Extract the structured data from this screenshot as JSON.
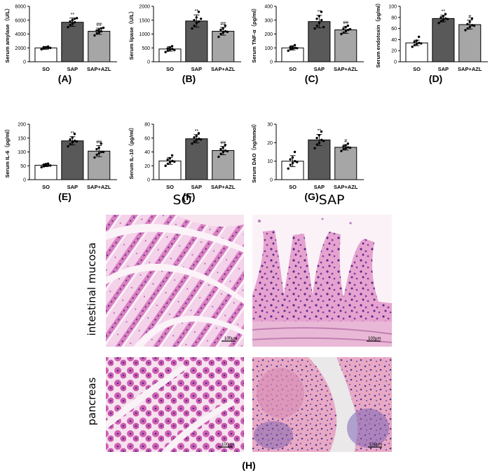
{
  "chart_data": [
    {
      "type": "bar",
      "panel_label": "(A)",
      "ylabel": "Serum amylase（U/L）",
      "categories": [
        "SO",
        "SAP",
        "SAP+AZL"
      ],
      "ylim": [
        0,
        8000
      ],
      "yticks": [
        "0",
        "2000",
        "4000",
        "6000",
        "8000"
      ],
      "values": [
        2000,
        5700,
        4400
      ],
      "errors": [
        200,
        600,
        450
      ],
      "significance": [
        "",
        "**",
        "##"
      ],
      "points": [
        [
          1800,
          1900,
          2000,
          2000,
          2100,
          2100,
          2200,
          2000
        ],
        [
          5000,
          5300,
          5500,
          5700,
          5800,
          6000,
          6200,
          6300
        ],
        [
          3800,
          4100,
          4200,
          4400,
          4500,
          4600,
          4800,
          4900
        ]
      ]
    },
    {
      "type": "bar",
      "panel_label": "(B)",
      "ylabel": "Serum lipase（U/L）",
      "categories": [
        "SO",
        "SAP",
        "SAP+AZL"
      ],
      "ylim": [
        0,
        2000
      ],
      "yticks": [
        "0",
        "500",
        "1000",
        "1500",
        "2000"
      ],
      "values": [
        460,
        1470,
        1100
      ],
      "errors": [
        80,
        220,
        140
      ],
      "significance": [
        "",
        "**",
        "##"
      ],
      "points": [
        [
          350,
          400,
          440,
          460,
          480,
          520,
          560,
          420
        ],
        [
          1200,
          1300,
          1400,
          1450,
          1500,
          1600,
          1800,
          1550
        ],
        [
          900,
          1000,
          1050,
          1100,
          1150,
          1200,
          1300,
          1080
        ]
      ]
    },
    {
      "type": "bar",
      "panel_label": "(C)",
      "ylabel": "Serum TNF-α（pg/ml）",
      "categories": [
        "SO",
        "SAP",
        "SAP+AZL"
      ],
      "ylim": [
        0,
        400
      ],
      "yticks": [
        "0",
        "100",
        "200",
        "300",
        "400"
      ],
      "values": [
        100,
        290,
        230
      ],
      "errors": [
        15,
        45,
        25
      ],
      "significance": [
        "",
        "**",
        "##"
      ],
      "points": [
        [
          80,
          90,
          95,
          100,
          105,
          110,
          120,
          98
        ],
        [
          240,
          260,
          280,
          300,
          310,
          330,
          360,
          250
        ],
        [
          200,
          210,
          220,
          230,
          240,
          250,
          260,
          235
        ]
      ]
    },
    {
      "type": "bar",
      "panel_label": "(D)",
      "ylabel": "Serum endotoxin（pg/ml）",
      "categories": [
        "SO",
        "SAP",
        "SAP+AZL"
      ],
      "ylim": [
        0,
        100
      ],
      "yticks": [
        "0",
        "20",
        "40",
        "60",
        "80",
        "100"
      ],
      "values": [
        34,
        78,
        67
      ],
      "errors": [
        5,
        6,
        8
      ],
      "significance": [
        "",
        "**",
        "#"
      ],
      "points": [
        [
          27,
          30,
          32,
          34,
          36,
          38,
          45,
          33
        ],
        [
          70,
          73,
          75,
          78,
          80,
          82,
          86,
          77
        ],
        [
          57,
          60,
          63,
          66,
          68,
          72,
          78,
          65
        ]
      ]
    },
    {
      "type": "bar",
      "panel_label": "(E)",
      "ylabel": "Serum IL-6（pg/ml）",
      "categories": [
        "SO",
        "SAP",
        "SAP+AZL"
      ],
      "ylim": [
        0,
        200
      ],
      "yticks": [
        "0",
        "50",
        "100",
        "150",
        "200"
      ],
      "values": [
        52,
        140,
        103
      ],
      "errors": [
        5,
        15,
        20
      ],
      "significance": [
        "",
        "**",
        "##"
      ],
      "points": [
        [
          45,
          48,
          50,
          52,
          54,
          56,
          58,
          51
        ],
        [
          120,
          128,
          135,
          140,
          145,
          152,
          165,
          138
        ],
        [
          80,
          90,
          95,
          100,
          110,
          115,
          130,
          100
        ]
      ]
    },
    {
      "type": "bar",
      "panel_label": "(F)",
      "ylabel": "Serum IL-10（pg/ml）",
      "categories": [
        "SO",
        "SAP",
        "SAP+AZL"
      ],
      "ylim": [
        0,
        80
      ],
      "yticks": [
        "0",
        "20",
        "40",
        "60",
        "80"
      ],
      "values": [
        27,
        59,
        42
      ],
      "errors": [
        5,
        6,
        6
      ],
      "significance": [
        "",
        "**",
        "##"
      ],
      "points": [
        [
          20,
          23,
          25,
          27,
          29,
          31,
          35,
          26
        ],
        [
          52,
          55,
          57,
          59,
          61,
          63,
          67,
          58
        ],
        [
          33,
          37,
          40,
          42,
          44,
          46,
          50,
          41
        ]
      ]
    },
    {
      "type": "bar",
      "panel_label": "(G)",
      "ylabel": "Serum DAO（ng/mmol）",
      "categories": [
        "SO",
        "SAP",
        "SAP+AZL"
      ],
      "ylim": [
        0,
        30
      ],
      "yticks": [
        "0",
        "10",
        "20",
        "30"
      ],
      "values": [
        10,
        21.5,
        17.5
      ],
      "errors": [
        3,
        3,
        1.5
      ],
      "significance": [
        "",
        "**",
        "#"
      ],
      "points": [
        [
          6,
          8,
          9,
          10,
          11,
          12,
          15,
          9.5
        ],
        [
          17,
          19,
          20,
          21.5,
          22.5,
          24,
          26,
          21
        ],
        [
          15.5,
          16.5,
          17,
          17.5,
          18,
          18.5,
          19.5,
          17.3
        ]
      ]
    }
  ],
  "histology": {
    "column_labels": [
      "SO",
      "SAP"
    ],
    "row_labels": [
      "intestinal mucosa",
      "pancreas"
    ],
    "scale_bar": "100μm",
    "panel_label": "(H)"
  },
  "colors": {
    "SO": "#ffffff",
    "SAP": "#595959",
    "SAP+AZL": "#a6a6a6",
    "axis": "#000000",
    "tissue_pink": "#e9a7d2",
    "tissue_purple": "#8a4fb0"
  }
}
